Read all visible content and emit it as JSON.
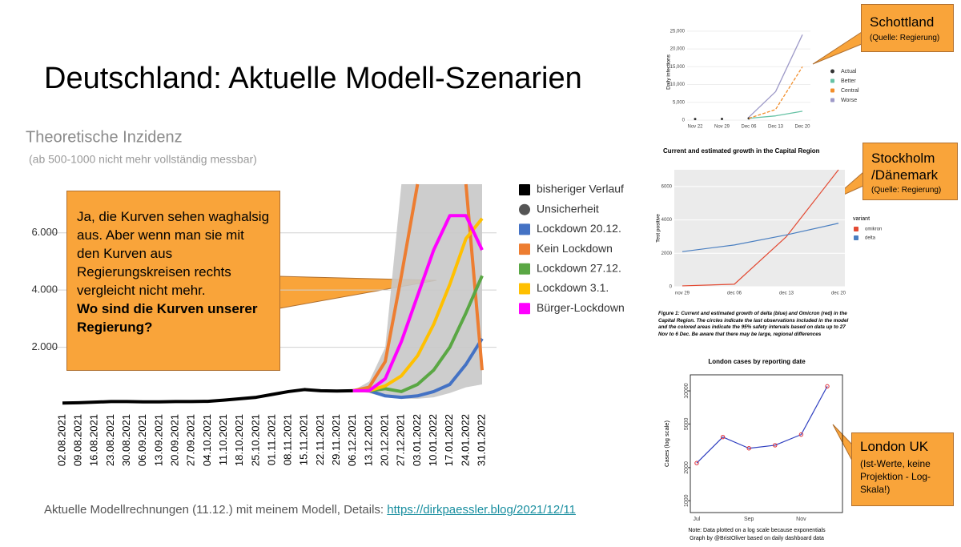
{
  "title": "Deutschland: Aktuelle Modell-Szenarien",
  "callouts": [
    {
      "text": "Ja, die Kurven sehen waghalsig aus. Aber wenn man sie mit den Kurven aus Regierungskreisen rechts vergleicht nicht mehr.",
      "bold": "Wo sind die Kurven unserer Regierung?"
    },
    {
      "text": "Schottland",
      "note": "(Quelle: Regierung)"
    },
    {
      "text": "Stockholm /Dänemark",
      "note": "(Quelle: Regierung)"
    },
    {
      "text": "London UK",
      "note": "(Ist-Werte, keine Projektion - Log-Skala!)"
    }
  ],
  "footer": {
    "text": "Aktuelle Modellrechnungen (11.12.) mit meinem Modell, Details: ",
    "link": "https://dirkpaessler.blog/2021/12/11"
  },
  "chart_data": [
    {
      "type": "line",
      "title": "Theoretische Inzidenz",
      "subtitle": "(ab 500-1000 nicht mehr vollständig messbar)",
      "categories": [
        "02.08.2021",
        "09.08.2021",
        "16.08.2021",
        "23.08.2021",
        "30.08.2021",
        "06.09.2021",
        "13.09.2021",
        "20.09.2021",
        "27.09.2021",
        "04.10.2021",
        "11.10.2021",
        "18.10.2021",
        "25.10.2021",
        "01.11.2021",
        "08.11.2021",
        "15.11.2021",
        "22.11.2021",
        "29.11.2021",
        "06.12.2021",
        "13.12.2021",
        "20.12.2021",
        "27.12.2021",
        "03.01.2022",
        "10.01.2022",
        "17.01.2022",
        "24.01.2022",
        "31.01.2022"
      ],
      "ylim": [
        0,
        7700
      ],
      "yticks": [
        {
          "value": 2000,
          "label": "2.000"
        },
        {
          "value": 4000,
          "label": "4.000"
        },
        {
          "value": 6000,
          "label": "6.000"
        }
      ],
      "grid": true,
      "band": {
        "name": "Unsicherheit",
        "color": "#c8c8c8",
        "lower": [
          null,
          null,
          null,
          null,
          null,
          null,
          null,
          null,
          null,
          null,
          null,
          null,
          null,
          null,
          null,
          null,
          null,
          null,
          480,
          400,
          250,
          200,
          200,
          250,
          400,
          600,
          700
        ],
        "upper": [
          null,
          null,
          null,
          null,
          null,
          null,
          null,
          null,
          null,
          null,
          null,
          null,
          null,
          null,
          null,
          null,
          null,
          null,
          480,
          800,
          2000,
          7700,
          7700,
          7700,
          7700,
          7700,
          7700
        ]
      },
      "series": [
        {
          "name": "bisheriger Verlauf",
          "color": "#000000",
          "values": [
            50,
            60,
            80,
            100,
            100,
            90,
            90,
            100,
            100,
            110,
            150,
            200,
            250,
            350,
            450,
            520,
            480,
            470,
            480,
            null,
            null,
            null,
            null,
            null,
            null,
            null,
            null
          ]
        },
        {
          "name": "Lockdown 20.12.",
          "color": "#4472c4",
          "values": [
            null,
            null,
            null,
            null,
            null,
            null,
            null,
            null,
            null,
            null,
            null,
            null,
            null,
            null,
            null,
            null,
            null,
            null,
            480,
            480,
            300,
            250,
            300,
            450,
            700,
            1400,
            2300
          ]
        },
        {
          "name": "Kein Lockdown",
          "color": "#ed7d31",
          "values": [
            null,
            null,
            null,
            null,
            null,
            null,
            null,
            null,
            null,
            null,
            null,
            null,
            null,
            null,
            null,
            null,
            null,
            null,
            480,
            600,
            1500,
            4500,
            7700,
            null,
            null,
            7700,
            1200
          ]
        },
        {
          "name": "Lockdown 27.12.",
          "color": "#5aa744",
          "values": [
            null,
            null,
            null,
            null,
            null,
            null,
            null,
            null,
            null,
            null,
            null,
            null,
            null,
            null,
            null,
            null,
            null,
            null,
            480,
            480,
            550,
            450,
            700,
            1200,
            2000,
            3200,
            4500
          ]
        },
        {
          "name": "Lockdown 3.1.",
          "color": "#ffc000",
          "values": [
            null,
            null,
            null,
            null,
            null,
            null,
            null,
            null,
            null,
            null,
            null,
            null,
            null,
            null,
            null,
            null,
            null,
            null,
            480,
            480,
            650,
            1000,
            1700,
            2800,
            4200,
            5800,
            6500
          ]
        },
        {
          "name": "Bürger-Lockdown",
          "color": "#ff00ff",
          "values": [
            null,
            null,
            null,
            null,
            null,
            null,
            null,
            null,
            null,
            null,
            null,
            null,
            null,
            null,
            null,
            null,
            null,
            null,
            480,
            480,
            900,
            2200,
            3800,
            5400,
            6600,
            6600,
            5400
          ]
        }
      ]
    },
    {
      "type": "line",
      "y_label": "Daily infections",
      "categories": [
        "Nov 22",
        "Nov 29",
        "Dec 06",
        "Dec 13",
        "Dec 20"
      ],
      "ylim": [
        0,
        27000
      ],
      "yticks": [
        0,
        {
          "value": 5000,
          "label": "5,000"
        },
        {
          "value": 10000,
          "label": "10,000"
        },
        {
          "value": 15000,
          "label": "15,000"
        },
        {
          "value": 20000,
          "label": "20,000"
        },
        {
          "value": 25000,
          "label": "25,000"
        }
      ],
      "grid": true,
      "series": [
        {
          "name": "Actual",
          "color": "#333333",
          "style": "points",
          "values": [
            300,
            350,
            500,
            null,
            null
          ]
        },
        {
          "name": "Better",
          "color": "#66c2a5",
          "values": [
            null,
            null,
            500,
            1200,
            2500
          ]
        },
        {
          "name": "Central",
          "color": "#f28e2b",
          "style": "dashed",
          "values": [
            null,
            null,
            500,
            3000,
            15000
          ]
        },
        {
          "name": "Worse",
          "color": "#9e9ac8",
          "values": [
            null,
            null,
            800,
            8000,
            24000
          ]
        }
      ]
    },
    {
      "type": "line",
      "title": "Current and estimated growth in the Capital Region",
      "y_label": "Test positive",
      "legend_title": "variant",
      "categories": [
        "nov 29",
        "dec 06",
        "dec 13",
        "dec 20"
      ],
      "ylim": [
        0,
        7000
      ],
      "yticks": [
        0,
        2000,
        4000,
        6000
      ],
      "grid": true,
      "caption": "Figure 1: Current and estimated growth of delta (blue) and Omicron (red) in the Capital Region. The circles indicate the last observations included in the model and the colored areas indicate the 95% safety intervals based on data up to 27 Nov to 6 Dec. Be aware that there may be large, regional differences",
      "series": [
        {
          "name": "omikron",
          "color": "#e34a33",
          "values": [
            50,
            150,
            3000,
            7000
          ]
        },
        {
          "name": "delta",
          "color": "#4a7fc1",
          "values": [
            2100,
            2500,
            3100,
            3800
          ]
        }
      ]
    },
    {
      "type": "line",
      "title": "London cases by reporting date",
      "y_label": "Cases (log scale)",
      "log_scale": true,
      "categories": [
        "Jul",
        null,
        "Sep",
        null,
        "Nov",
        null
      ],
      "ylim": [
        780,
        14000
      ],
      "yticks": [
        1000,
        2000,
        5000,
        10000
      ],
      "note": [
        "Note: Data plotted on a log scale because exponentials",
        "Graph by @BristOliver based on daily dashboard data"
      ],
      "series": [
        {
          "color": "#e0303a",
          "values": [
            2200,
            3800,
            3000,
            3200,
            4000,
            11000
          ]
        }
      ]
    }
  ]
}
